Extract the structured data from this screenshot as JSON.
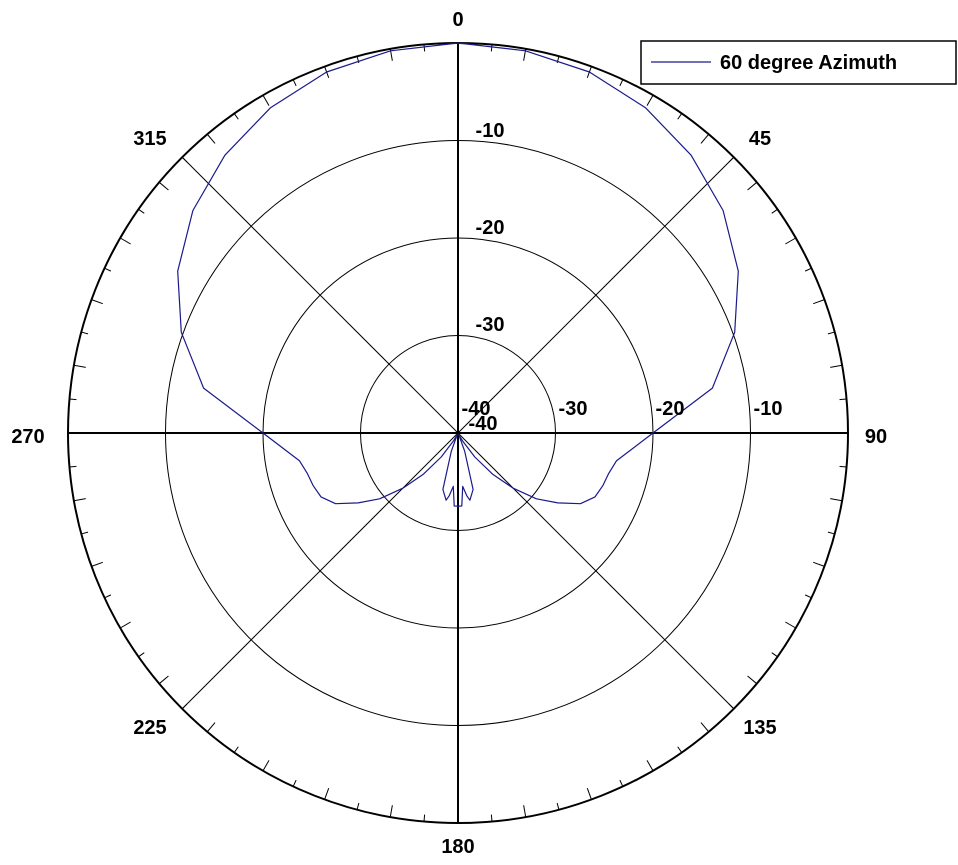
{
  "chart_data": {
    "type": "polar-line",
    "angle_labels": [
      "0",
      "45",
      "90",
      "135",
      "180",
      "225",
      "270",
      "315"
    ],
    "angle_direction": "clockwise",
    "angle_zero": "top",
    "radial_unit": "dB",
    "radial_range": [
      -40,
      0
    ],
    "radial_ticks_vertical": [
      "-10",
      "-20",
      "-30",
      "-40"
    ],
    "radial_ticks_horizontal": [
      "-40",
      "-30",
      "-20",
      "-10"
    ],
    "grid": true,
    "legend": {
      "position": "top-right",
      "entries": [
        "60 degree Azimuth"
      ]
    },
    "series": [
      {
        "name": "60 degree Azimuth",
        "color": "#1a1a8c",
        "angles_deg": [
          0,
          10,
          20,
          30,
          40,
          50,
          60,
          70,
          80,
          90,
          100,
          105,
          110,
          115,
          120,
          125,
          130,
          135,
          140,
          145,
          150,
          155,
          160,
          165,
          170,
          172,
          175,
          177,
          180,
          183,
          185,
          188,
          190,
          195,
          200,
          205,
          210,
          215,
          220,
          225,
          230,
          235,
          240,
          245,
          250,
          255,
          260,
          270,
          280,
          290,
          300,
          310,
          320,
          330,
          340,
          350,
          360
        ],
        "values_db": [
          0.0,
          -0.2,
          -0.6,
          -1.5,
          -2.8,
          -4.5,
          -6.8,
          -9.8,
          -13.5,
          -20.0,
          -23.5,
          -24.0,
          -24.2,
          -24.5,
          -25.5,
          -27.5,
          -29.5,
          -32.0,
          -34.5,
          -37.0,
          -39.0,
          -39.8,
          -38.0,
          -34.0,
          -33.0,
          -33.5,
          -34.5,
          -32.5,
          -32.5,
          -32.5,
          -34.5,
          -33.5,
          -33.0,
          -34.0,
          -38.0,
          -39.8,
          -39.0,
          -37.0,
          -34.5,
          -32.0,
          -29.5,
          -27.5,
          -25.5,
          -24.5,
          -24.2,
          -24.0,
          -23.5,
          -20.0,
          -13.5,
          -9.8,
          -6.8,
          -4.5,
          -2.8,
          -1.5,
          -0.6,
          -0.2,
          0.0
        ]
      }
    ]
  }
}
